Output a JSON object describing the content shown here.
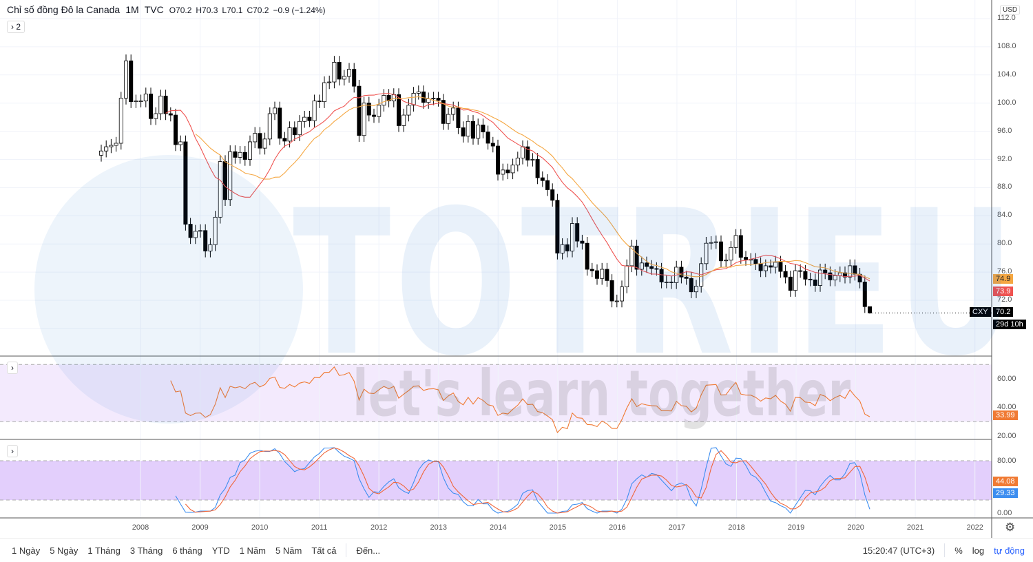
{
  "header": {
    "title": "Chỉ số đồng Đô la Canada",
    "interval": "1M",
    "exchange": "TVC",
    "open": "O70.2",
    "high": "H70.3",
    "low": "L70.1",
    "close": "C70.2",
    "change": "−0.9 (−1.24%)",
    "indicators_toggle": "2"
  },
  "currency": "USD",
  "watermark": {
    "brand": "TOTRIEU",
    "slogan": "let's learn together"
  },
  "price_axis": [
    "112.0",
    "108.0",
    "104.0",
    "100.0",
    "96.0",
    "92.0",
    "88.0",
    "84.0",
    "80.0",
    "76.0",
    "72.0"
  ],
  "badges": {
    "ma_orange": "74.9",
    "ma_red": "73.9",
    "symbol": "CXY",
    "last_price": "70.2",
    "countdown": "29d 10h",
    "rsi": "33.99",
    "stoch_d": "44.08",
    "stoch_k": "29.33"
  },
  "rsi_axis": [
    "60.00",
    "40.00",
    "20.00"
  ],
  "stoch_axis": [
    "80.00",
    "0.00"
  ],
  "colors": {
    "ma_red": "#ef5350",
    "ma_orange": "#f5a742",
    "rsi": "#f07a33",
    "stoch_k": "#3d8ef0",
    "stoch_d": "#f0663a",
    "rsi_band": "#f3eafd",
    "stoch_band": "#e3cffc"
  },
  "chart_data": {
    "type": "candlestick",
    "title": "Chỉ số đồng Đô la Canada",
    "start_month": "2007-05",
    "frequency": "monthly",
    "ylim": [
      66,
      113
    ],
    "x_ticks": [
      "2008",
      "2009",
      "2010",
      "2011",
      "2012",
      "2013",
      "2014",
      "2015",
      "2016",
      "2017",
      "2018",
      "2019",
      "2020",
      "2021",
      "2022"
    ],
    "close": [
      93.2,
      93.8,
      94.0,
      94.3,
      100.7,
      106.0,
      100.2,
      100.3,
      100.3,
      101.3,
      97.8,
      98.5,
      101.0,
      98.5,
      98.3,
      94.1,
      94.5,
      82.8,
      80.9,
      81.8,
      81.9,
      79.0,
      79.9,
      83.8,
      91.7,
      86.3,
      93.1,
      92.3,
      93.0,
      92.0,
      94.5,
      95.7,
      93.6,
      94.9,
      98.5,
      99.3,
      95.0,
      94.6,
      96.5,
      95.5,
      97.4,
      98.0,
      97.5,
      100.3,
      100.2,
      102.9,
      103.0,
      105.8,
      103.4,
      103.8,
      104.8,
      102.4,
      95.4,
      100.0,
      98.3,
      98.1,
      99.7,
      101.1,
      100.3,
      101.2,
      96.8,
      98.3,
      99.7,
      101.4,
      101.6,
      100.1,
      100.6,
      100.7,
      100.4,
      97.1,
      98.4,
      99.3,
      96.5,
      95.3,
      97.4,
      95.0,
      96.9,
      95.9,
      94.3,
      93.9,
      89.9,
      90.5,
      90.1,
      91.2,
      92.2,
      93.8,
      91.9,
      92.0,
      89.4,
      89.0,
      87.7,
      86.2,
      78.7,
      79.9,
      79.0,
      82.9,
      80.4,
      80.1,
      76.4,
      76.2,
      75.1,
      76.4,
      74.8,
      71.9,
      71.9,
      73.9,
      76.9,
      79.7,
      76.4,
      77.3,
      76.8,
      76.5,
      76.4,
      74.6,
      74.6,
      74.5,
      76.7,
      75.3,
      75.1,
      73.2,
      74.0,
      77.2,
      80.1,
      80.2,
      80.3,
      77.6,
      77.7,
      79.5,
      81.2,
      78.1,
      77.8,
      77.8,
      77.2,
      76.2,
      76.9,
      76.7,
      77.4,
      76.1,
      75.3,
      73.4,
      76.2,
      76.1,
      75.0,
      74.9,
      74.1,
      76.3,
      75.9,
      74.9,
      75.5,
      75.9,
      75.3,
      76.9,
      75.7,
      74.6,
      71.1,
      70.2
    ],
    "last_bar": {
      "open": 70.2,
      "high": 70.3,
      "low": 70.1,
      "close": 70.2
    },
    "moving_averages": [
      {
        "value": 73.9,
        "color": "#ef5350"
      },
      {
        "value": 74.9,
        "color": "#f5a742"
      }
    ],
    "rsi": {
      "last": 33.99,
      "bands": [
        30,
        70
      ],
      "ylim": [
        17,
        73
      ]
    },
    "stochastic": {
      "k_last": 29.33,
      "d_last": 44.08,
      "bands": [
        20,
        80
      ],
      "ylim": [
        -3,
        100
      ]
    }
  },
  "toolbar": {
    "ranges": [
      "1 Ngày",
      "5 Ngày",
      "1 Tháng",
      "3 Tháng",
      "6 tháng",
      "YTD",
      "1 Năm",
      "5 Năm",
      "Tất cả"
    ],
    "goto": "Đến...",
    "clock": "15:20:47 (UTC+3)",
    "percent": "%",
    "log": "log",
    "auto": "tự động"
  }
}
